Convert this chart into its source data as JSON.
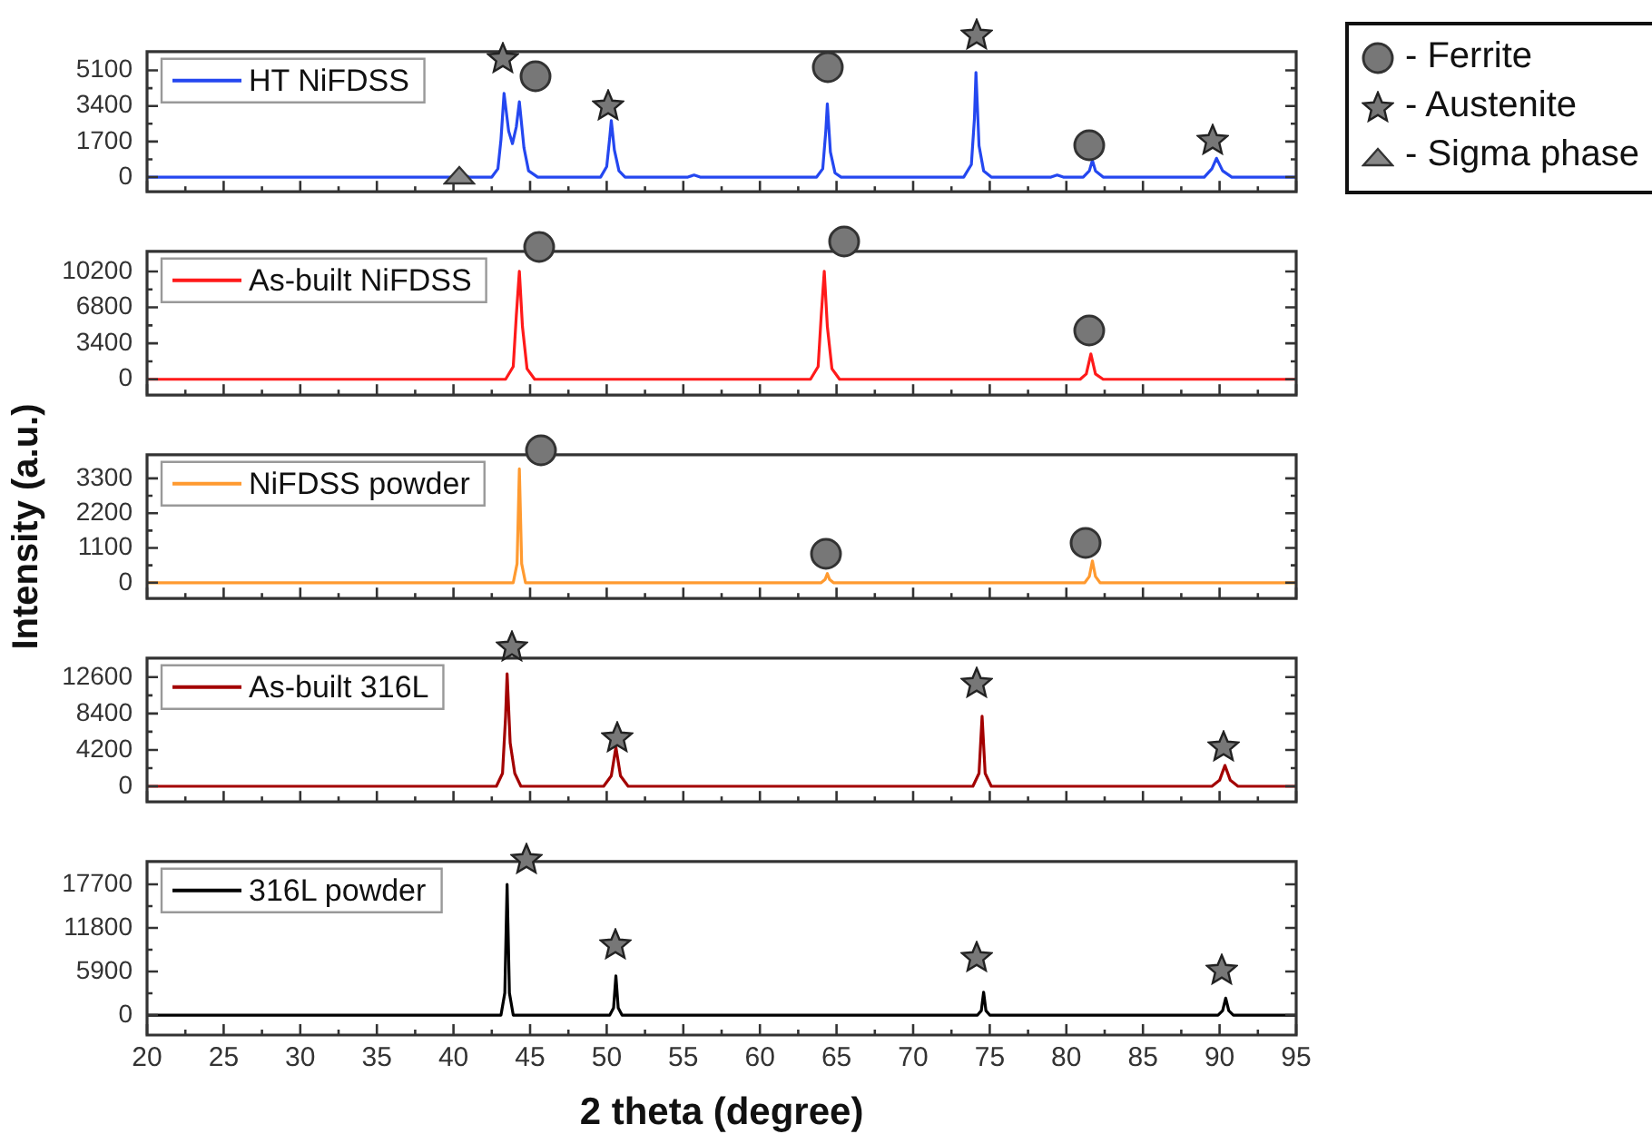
{
  "chart_data": [
    {
      "type": "line",
      "xlim": [
        20,
        95
      ],
      "xticks": [
        20,
        {
          "value": 22.5,
          "label": null
        },
        25,
        {
          "value": 27.5,
          "label": null
        },
        30,
        {
          "value": 32.5,
          "label": null
        },
        35,
        {
          "value": 37.5,
          "label": null
        },
        40,
        {
          "value": 42.5,
          "label": null
        },
        45,
        {
          "value": 47.5,
          "label": null
        },
        50,
        {
          "value": 52.5,
          "label": null
        },
        55,
        {
          "value": 57.5,
          "label": null
        },
        60,
        {
          "value": 62.5,
          "label": null
        },
        65,
        {
          "value": 67.5,
          "label": null
        },
        70,
        {
          "value": 72.5,
          "label": null
        },
        75,
        {
          "value": 77.5,
          "label": null
        },
        80,
        {
          "value": 82.5,
          "label": null
        },
        85,
        {
          "value": 87.5,
          "label": null
        },
        90,
        {
          "value": 92.5,
          "label": null
        },
        95
      ],
      "ylim": [
        -700,
        6000
      ],
      "yticks": [
        0,
        {
          "value": 850,
          "label": null
        },
        1700,
        {
          "value": 2550,
          "label": null
        },
        3400,
        {
          "value": 4250,
          "label": null
        },
        5100
      ],
      "tick_labels": "y",
      "legend": "top left",
      "series": [
        {
          "name": "HT NiFDSS",
          "color": "#2447f0",
          "x": [
            20,
            40.0,
            40.3,
            40.5,
            40.7,
            41.0,
            42.5,
            42.9,
            43.1,
            43.3,
            43.6,
            43.85,
            44.1,
            44.3,
            44.6,
            44.9,
            45.5,
            49.6,
            50.0,
            50.2,
            50.3,
            50.5,
            50.8,
            51.2,
            55.3,
            55.7,
            56.1,
            63.7,
            64.1,
            64.3,
            64.4,
            64.6,
            64.9,
            65.3,
            73.3,
            73.8,
            74.0,
            74.1,
            74.3,
            74.6,
            75.1,
            79.0,
            79.4,
            79.8,
            81.1,
            81.5,
            81.7,
            81.9,
            82.4,
            89.0,
            89.5,
            89.8,
            90.2,
            90.8,
            95
          ],
          "values": [
            0,
            0,
            100,
            300,
            100,
            0,
            0,
            400,
            1800,
            4000,
            2200,
            1600,
            2400,
            3600,
            1400,
            300,
            0,
            0,
            500,
            1900,
            2700,
            1300,
            300,
            0,
            0,
            100,
            0,
            0,
            400,
            2200,
            3500,
            1200,
            200,
            0,
            0,
            600,
            2800,
            5000,
            1500,
            300,
            0,
            0,
            100,
            0,
            0,
            300,
            800,
            300,
            0,
            0,
            400,
            900,
            300,
            0,
            0
          ]
        }
      ]
    },
    {
      "type": "line",
      "xlim": [
        20,
        95
      ],
      "xticks": [
        20,
        {
          "value": 22.5,
          "label": null
        },
        25,
        {
          "value": 27.5,
          "label": null
        },
        30,
        {
          "value": 32.5,
          "label": null
        },
        35,
        {
          "value": 37.5,
          "label": null
        },
        40,
        {
          "value": 42.5,
          "label": null
        },
        45,
        {
          "value": 47.5,
          "label": null
        },
        50,
        {
          "value": 52.5,
          "label": null
        },
        55,
        {
          "value": 57.5,
          "label": null
        },
        60,
        {
          "value": 62.5,
          "label": null
        },
        65,
        {
          "value": 67.5,
          "label": null
        },
        70,
        {
          "value": 72.5,
          "label": null
        },
        75,
        {
          "value": 77.5,
          "label": null
        },
        80,
        {
          "value": 82.5,
          "label": null
        },
        85,
        {
          "value": 87.5,
          "label": null
        },
        90,
        {
          "value": 92.5,
          "label": null
        },
        95
      ],
      "ylim": [
        -1500,
        12100
      ],
      "yticks": [
        0,
        {
          "value": 1700,
          "label": null
        },
        3400,
        {
          "value": 5100,
          "label": null
        },
        6800,
        {
          "value": 8500,
          "label": null
        },
        10200
      ],
      "tick_labels": "y",
      "legend": "top left",
      "series": [
        {
          "name": "As-built NiFDSS",
          "color": "#ff1a1a",
          "x": [
            20,
            43.4,
            43.9,
            44.1,
            44.3,
            44.5,
            44.8,
            45.3,
            63.3,
            63.8,
            64.0,
            64.2,
            64.4,
            64.7,
            65.2,
            80.9,
            81.3,
            81.6,
            81.9,
            82.4,
            95
          ],
          "values": [
            0,
            0,
            1200,
            6000,
            10200,
            5000,
            1000,
            0,
            0,
            1200,
            6000,
            10200,
            5000,
            1000,
            0,
            0,
            500,
            2400,
            500,
            0,
            0
          ]
        }
      ]
    },
    {
      "type": "line",
      "ylabel": "Intensity (a.u.)",
      "xlim": [
        20,
        95
      ],
      "xticks": [
        20,
        {
          "value": 22.5,
          "label": null
        },
        25,
        {
          "value": 27.5,
          "label": null
        },
        30,
        {
          "value": 32.5,
          "label": null
        },
        35,
        {
          "value": 37.5,
          "label": null
        },
        40,
        {
          "value": 42.5,
          "label": null
        },
        45,
        {
          "value": 47.5,
          "label": null
        },
        50,
        {
          "value": 52.5,
          "label": null
        },
        55,
        {
          "value": 57.5,
          "label": null
        },
        60,
        {
          "value": 62.5,
          "label": null
        },
        65,
        {
          "value": 67.5,
          "label": null
        },
        70,
        {
          "value": 72.5,
          "label": null
        },
        75,
        {
          "value": 77.5,
          "label": null
        },
        80,
        {
          "value": 82.5,
          "label": null
        },
        85,
        {
          "value": 87.5,
          "label": null
        },
        90,
        {
          "value": 92.5,
          "label": null
        },
        95
      ],
      "ylim": [
        -500,
        4050
      ],
      "yticks": [
        0,
        {
          "value": 550,
          "label": null
        },
        1100,
        {
          "value": 1650,
          "label": null
        },
        2200,
        {
          "value": 2750,
          "label": null
        },
        3300
      ],
      "tick_labels": "y",
      "legend": "top left",
      "series": [
        {
          "name": "NiFDSS powder",
          "color": "#ff9a30",
          "x": [
            20,
            43.9,
            44.15,
            44.3,
            44.45,
            44.7,
            64.0,
            64.25,
            64.4,
            64.55,
            64.8,
            81.2,
            81.5,
            81.7,
            81.9,
            82.2,
            95
          ],
          "values": [
            0,
            0,
            600,
            3600,
            600,
            0,
            0,
            100,
            290,
            100,
            0,
            0,
            200,
            690,
            200,
            0,
            0
          ]
        }
      ]
    },
    {
      "type": "line",
      "xlim": [
        20,
        95
      ],
      "xticks": [
        20,
        {
          "value": 22.5,
          "label": null
        },
        25,
        {
          "value": 27.5,
          "label": null
        },
        30,
        {
          "value": 32.5,
          "label": null
        },
        35,
        {
          "value": 37.5,
          "label": null
        },
        40,
        {
          "value": 42.5,
          "label": null
        },
        45,
        {
          "value": 47.5,
          "label": null
        },
        50,
        {
          "value": 52.5,
          "label": null
        },
        55,
        {
          "value": 57.5,
          "label": null
        },
        60,
        {
          "value": 62.5,
          "label": null
        },
        65,
        {
          "value": 67.5,
          "label": null
        },
        70,
        {
          "value": 72.5,
          "label": null
        },
        75,
        {
          "value": 77.5,
          "label": null
        },
        80,
        {
          "value": 82.5,
          "label": null
        },
        85,
        {
          "value": 87.5,
          "label": null
        },
        90,
        {
          "value": 92.5,
          "label": null
        },
        95
      ],
      "ylim": [
        -1800,
        14800
      ],
      "yticks": [
        0,
        {
          "value": 2100,
          "label": null
        },
        4200,
        {
          "value": 6300,
          "label": null
        },
        8400,
        {
          "value": 10500,
          "label": null
        },
        12600
      ],
      "tick_labels": "y",
      "legend": "top left",
      "series": [
        {
          "name": "As-built 316L",
          "color": "#a30000",
          "x": [
            20,
            42.8,
            43.2,
            43.4,
            43.5,
            43.7,
            44.0,
            44.4,
            49.8,
            50.3,
            50.6,
            50.9,
            51.4,
            73.9,
            74.3,
            74.5,
            74.7,
            75.1,
            89.5,
            90.0,
            90.35,
            90.7,
            91.2,
            95
          ],
          "values": [
            0,
            0,
            1500,
            8000,
            13000,
            5000,
            1500,
            0,
            0,
            1200,
            4500,
            1200,
            0,
            0,
            1500,
            8100,
            1500,
            0,
            0,
            700,
            2400,
            700,
            0,
            0
          ]
        }
      ]
    },
    {
      "type": "line",
      "xlabel": "2 theta (degree)",
      "xlim": [
        20,
        95
      ],
      "xticks": [
        20,
        {
          "value": 22.5,
          "label": null
        },
        25,
        {
          "value": 27.5,
          "label": null
        },
        30,
        {
          "value": 32.5,
          "label": null
        },
        35,
        {
          "value": 37.5,
          "label": null
        },
        40,
        {
          "value": 42.5,
          "label": null
        },
        45,
        {
          "value": 47.5,
          "label": null
        },
        50,
        {
          "value": 52.5,
          "label": null
        },
        55,
        {
          "value": 57.5,
          "label": null
        },
        60,
        {
          "value": 62.5,
          "label": null
        },
        65,
        {
          "value": 67.5,
          "label": null
        },
        70,
        {
          "value": 72.5,
          "label": null
        },
        75,
        {
          "value": 77.5,
          "label": null
        },
        80,
        {
          "value": 82.5,
          "label": null
        },
        85,
        {
          "value": 87.5,
          "label": null
        },
        90,
        {
          "value": 92.5,
          "label": null
        },
        95
      ],
      "ylim": [
        -2700,
        20800
      ],
      "yticks": [
        0,
        {
          "value": 2950,
          "label": null
        },
        5900,
        {
          "value": 8850,
          "label": null
        },
        11800,
        {
          "value": 14750,
          "label": null
        },
        17700
      ],
      "legend": "top left",
      "series": [
        {
          "name": "316L powder",
          "color": "#000000",
          "x": [
            20,
            43.1,
            43.35,
            43.5,
            43.65,
            43.9,
            50.2,
            50.45,
            50.6,
            50.75,
            51.0,
            74.2,
            74.45,
            74.6,
            74.75,
            75.0,
            89.9,
            90.2,
            90.4,
            90.6,
            90.9,
            95
          ],
          "values": [
            0,
            0,
            3000,
            17700,
            3000,
            0,
            0,
            1000,
            5300,
            1000,
            0,
            0,
            600,
            3100,
            600,
            0,
            0,
            600,
            2300,
            600,
            0,
            0
          ]
        }
      ]
    },
    {
      "type": "other",
      "annotations": [
        "-  Ferrite",
        "- Austenite",
        "- Sigma phase"
      ]
    }
  ]
}
